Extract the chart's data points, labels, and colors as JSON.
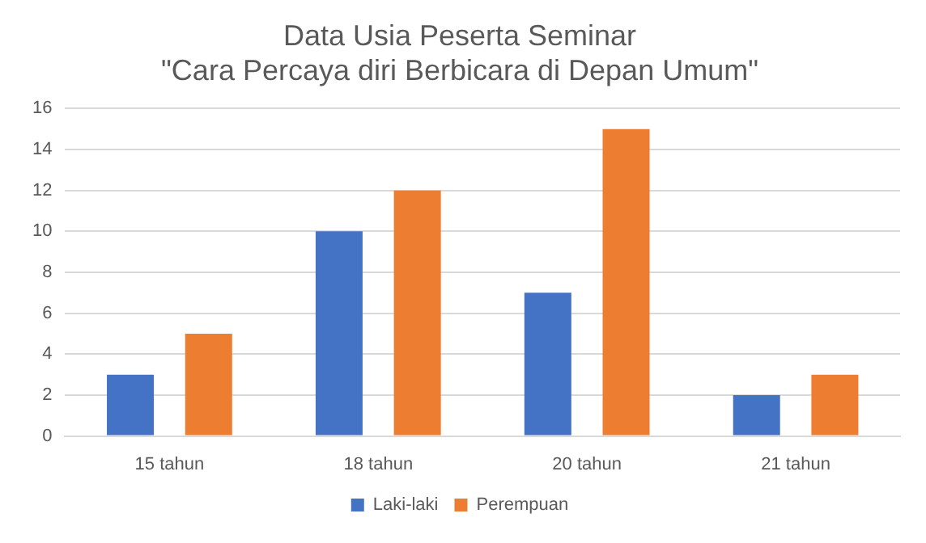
{
  "chart_data": {
    "type": "bar",
    "title": "Data Usia Peserta Seminar\n\"Cara Percaya diri Berbicara di Depan Umum\"",
    "categories": [
      "15 tahun",
      "18 tahun",
      "20 tahun",
      "21 tahun"
    ],
    "series": [
      {
        "name": "Laki-laki",
        "color": "#4472c4",
        "values": [
          3,
          10,
          7,
          2
        ]
      },
      {
        "name": "Perempuan",
        "color": "#ed7d31",
        "values": [
          5,
          12,
          15,
          3
        ]
      }
    ],
    "ylim": [
      0,
      16
    ],
    "yticks": [
      0,
      2,
      4,
      6,
      8,
      10,
      12,
      14,
      16
    ],
    "grid": "y",
    "legend": "bottom"
  }
}
